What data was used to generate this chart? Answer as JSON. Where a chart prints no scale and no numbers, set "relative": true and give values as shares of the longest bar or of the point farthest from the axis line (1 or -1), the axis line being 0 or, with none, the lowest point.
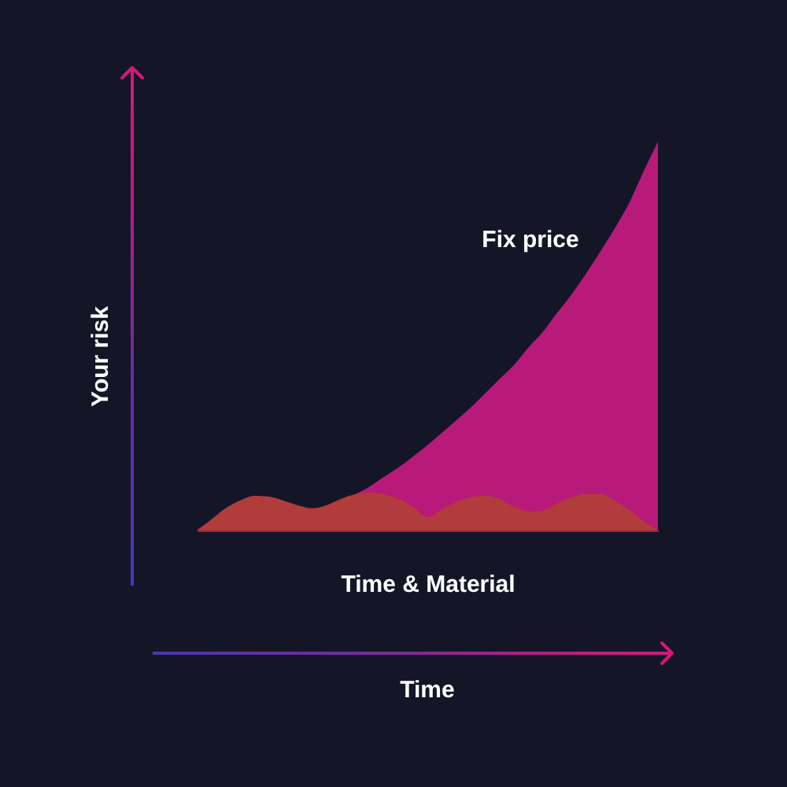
{
  "chart_data": {
    "type": "area",
    "relative": true,
    "ylabel": "Your risk",
    "annotations": [
      "Time"
    ],
    "categories": [
      null,
      null,
      null,
      null,
      null,
      null,
      null,
      null,
      null,
      null,
      null,
      null,
      null,
      null,
      null,
      null,
      null,
      null,
      null,
      null,
      null,
      null,
      null,
      null,
      null,
      null,
      null,
      null,
      null,
      null,
      null,
      null,
      null
    ],
    "series": [
      {
        "name": "Fix price",
        "color": "#b81a7a",
        "values": [
          null,
          null,
          null,
          null,
          null,
          null,
          null,
          null,
          null,
          null,
          null,
          0.093,
          0.113,
          0.138,
          0.162,
          0.19,
          0.219,
          0.251,
          0.283,
          0.316,
          0.352,
          0.389,
          0.425,
          0.47,
          0.51,
          0.559,
          0.607,
          0.66,
          0.717,
          0.777,
          0.842,
          0.923,
          1
        ]
      },
      {
        "name": "Time & Material",
        "color": "#b23c3c",
        "values": [
          0,
          0.028,
          0.057,
          0.077,
          0.089,
          0.087,
          0.077,
          0.065,
          0.057,
          0.065,
          0.081,
          0.093,
          0.097,
          0.093,
          0.081,
          0.061,
          0.034,
          0.053,
          0.073,
          0.085,
          0.089,
          0.081,
          0.061,
          0.049,
          0.051,
          0.069,
          0.085,
          0.093,
          0.093,
          0.077,
          0.053,
          0.024,
          0
        ]
      }
    ]
  }
}
